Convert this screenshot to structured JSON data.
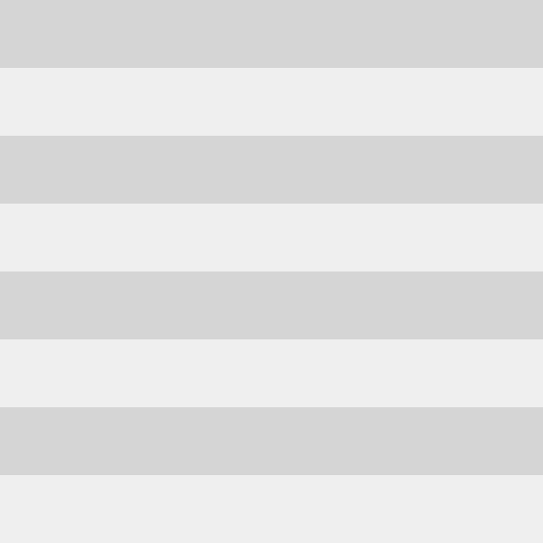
{
  "pattern": {
    "colors": {
      "gray": "#d5d5d5",
      "white": "#efefef"
    },
    "stripes": [
      "gray",
      "white",
      "gray",
      "white",
      "gray",
      "white",
      "gray",
      "white"
    ]
  }
}
